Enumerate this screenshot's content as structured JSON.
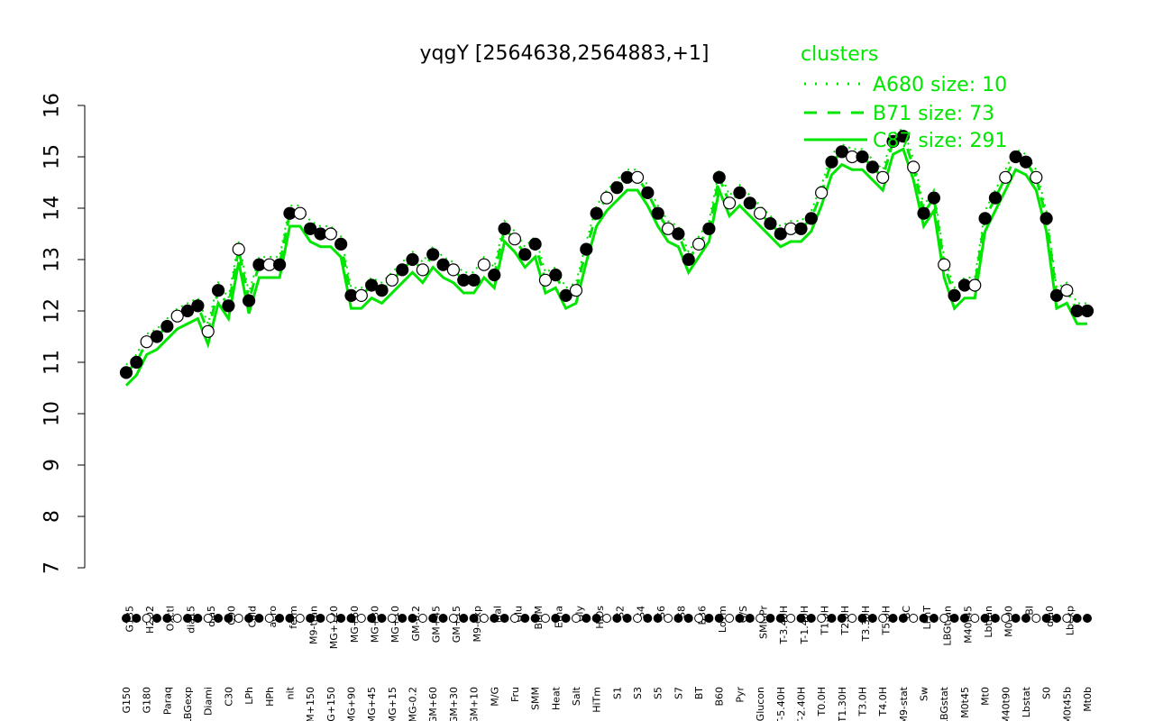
{
  "chart_data": {
    "type": "line",
    "title": "yqgY [2564638,2564883,+1]",
    "xlabel": "",
    "ylabel": "",
    "ylim": [
      7,
      16
    ],
    "yticks": [
      7,
      8,
      9,
      10,
      11,
      12,
      13,
      14,
      15,
      16
    ],
    "legend": {
      "title": "clusters",
      "placement": "top-right",
      "entries": [
        {
          "label": "A680 size: 10",
          "style": "dotted"
        },
        {
          "label": "B71 size: 73",
          "style": "dashed"
        },
        {
          "label": "C87 size: 291",
          "style": "solid"
        }
      ]
    },
    "x_tick_labels": [
      "G150",
      "G135",
      "G180",
      "H2O2",
      "Paraq",
      "Oxctl",
      "LBGexp",
      "dia15",
      "Diami",
      "dia5",
      "C30",
      "C90",
      "LPh",
      "Cold",
      "HPh",
      "aero",
      "nit",
      "ferm",
      "GM+150",
      "M9-tran",
      "MG+150",
      "MG+120",
      "MG+90",
      "MG+60",
      "MG+45",
      "MG+30",
      "MG+15",
      "MG+10",
      "MG-0.2",
      "GM-0.2",
      "GM+60",
      "GM+45",
      "GM+30",
      "GM+15",
      "GM+10",
      "M9-exp",
      "M/G",
      "Mal",
      "Fru",
      "Glu",
      "SMM",
      "BMM",
      "Heat",
      "Etha",
      "Salt",
      "Gly",
      "HiTm",
      "HiOs",
      "S1",
      "S2",
      "S3",
      "S4",
      "S5",
      "S6",
      "S7",
      "S8",
      "BT",
      "B36",
      "B60",
      "LoTm",
      "Pyr",
      "G/S",
      "Glucon",
      "SMMPr",
      "T-5.40H",
      "T-3.40H",
      "T-2.40H",
      "T-1.40H",
      "T0.0H",
      "T1.0H",
      "T1.30H",
      "T2.0H",
      "T3.0H",
      "T3.30H",
      "T4.0H",
      "T5.0H",
      "M9-stat",
      "BC",
      "Sw",
      "LPhT",
      "LBGstat",
      "LBGtran",
      "M0t45",
      "M40t45",
      "Mt0",
      "Lbtran",
      "M40t90",
      "M0t90",
      "Lbstat",
      "BI",
      "S0",
      "dia0",
      "M0t45b",
      "Lbexp",
      "Mt0b"
    ],
    "series": [
      {
        "name": "",
        "x": [
          0,
          1,
          2,
          3,
          4,
          5,
          6,
          7,
          8,
          9,
          10,
          11,
          12,
          13,
          14,
          15,
          16,
          17,
          18,
          19,
          20,
          21,
          22,
          23,
          24,
          25,
          26,
          27,
          28,
          29,
          30,
          31,
          32,
          33,
          34,
          35,
          36,
          37,
          38,
          39,
          40,
          41,
          42,
          43,
          44,
          45,
          46,
          47,
          48,
          49,
          50,
          51,
          52,
          53,
          54,
          55,
          56,
          57,
          58,
          59,
          60,
          61,
          62,
          63,
          64,
          65,
          66,
          67,
          68,
          69,
          70,
          71,
          72,
          73,
          74,
          75,
          76,
          77,
          78,
          79,
          80,
          81,
          82,
          83,
          84,
          85,
          86,
          87,
          88,
          89,
          90,
          91,
          92,
          93,
          94
        ],
        "values": [
          10.8,
          11.0,
          11.4,
          11.5,
          11.7,
          11.9,
          12.0,
          12.1,
          11.6,
          12.4,
          12.1,
          13.2,
          12.2,
          12.9,
          12.9,
          12.9,
          13.9,
          13.9,
          13.6,
          13.5,
          13.5,
          13.3,
          12.3,
          12.3,
          12.5,
          12.4,
          12.6,
          12.8,
          13.0,
          12.8,
          13.1,
          12.9,
          12.8,
          12.6,
          12.6,
          12.9,
          12.7,
          13.6,
          13.4,
          13.1,
          13.3,
          12.6,
          12.7,
          12.3,
          12.4,
          13.2,
          13.9,
          14.2,
          14.4,
          14.6,
          14.6,
          14.3,
          13.9,
          13.6,
          13.5,
          13.0,
          13.3,
          13.6,
          14.6,
          14.1,
          14.3,
          14.1,
          13.9,
          13.7,
          13.5,
          13.6,
          13.6,
          13.8,
          14.3,
          14.9,
          15.1,
          15.0,
          15.0,
          14.8,
          14.6,
          15.3,
          15.4,
          14.8,
          13.9,
          14.2,
          12.9,
          12.3,
          12.5,
          12.5,
          13.8,
          14.2,
          14.6,
          15.0,
          14.9,
          14.6,
          13.8,
          12.3,
          12.4,
          12.0,
          12.0
        ]
      }
    ],
    "series_colors": {
      "points": "#000000",
      "lines": "#00e600"
    }
  }
}
